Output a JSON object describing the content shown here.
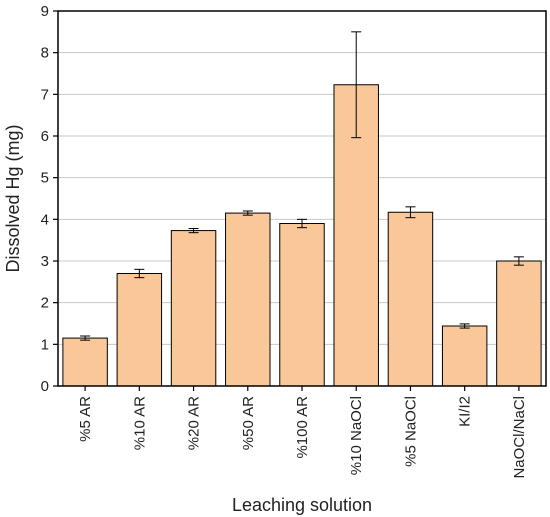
{
  "chart_data": {
    "type": "bar",
    "xlabel": "Leaching solution",
    "ylabel": "Dissolved Hg (mg)",
    "ylim": [
      0,
      9
    ],
    "yticks": [
      0,
      1,
      2,
      3,
      4,
      5,
      6,
      7,
      8,
      9
    ],
    "grid": "horizontal",
    "bar_color": "#FAC898",
    "bar_edge_color": "#000000",
    "categories": [
      "%5 AR",
      "%10 AR",
      "%20 AR",
      "%50 AR",
      "%100 AR",
      "%10 NaOCl",
      "%5 NaOCl",
      "KI/I2",
      "NaOCl/NaCl"
    ],
    "values": [
      1.15,
      2.7,
      3.73,
      4.15,
      3.9,
      7.23,
      4.17,
      1.44,
      3.0
    ],
    "errors": [
      0.05,
      0.1,
      0.05,
      0.05,
      0.1,
      1.27,
      0.13,
      0.05,
      0.1
    ]
  }
}
